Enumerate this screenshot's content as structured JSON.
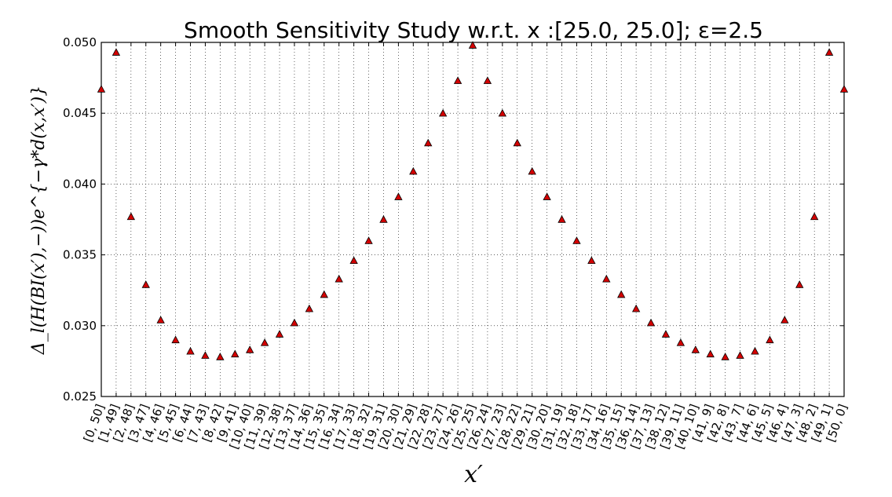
{
  "chart_data": {
    "type": "scatter",
    "title": "Smooth Sensitivity Study w.r.t. x :[25.0, 25.0]; ε=2.5",
    "xlabel": "x′",
    "ylabel": "Δ_l(H(BI(x′),−))e^{−γ*d(x,x′)}",
    "ylim": [
      0.025,
      0.05
    ],
    "y_ticks": [
      "0.025",
      "0.030",
      "0.035",
      "0.040",
      "0.045",
      "0.050"
    ],
    "grid": true,
    "marker": "triangle",
    "marker_color": "#d40000",
    "categories": [
      "[0, 50]",
      "[1, 49]",
      "[2, 48]",
      "[3, 47]",
      "[4, 46]",
      "[5, 45]",
      "[6, 44]",
      "[7, 43]",
      "[8, 42]",
      "[9, 41]",
      "[10, 40]",
      "[11, 39]",
      "[12, 38]",
      "[13, 37]",
      "[14, 36]",
      "[15, 35]",
      "[16, 34]",
      "[17, 33]",
      "[18, 32]",
      "[19, 31]",
      "[20, 30]",
      "[21, 29]",
      "[22, 28]",
      "[23, 27]",
      "[24, 26]",
      "[25, 25]",
      "[26, 24]",
      "[27, 23]",
      "[28, 22]",
      "[29, 21]",
      "[30, 20]",
      "[31, 19]",
      "[32, 18]",
      "[33, 17]",
      "[34, 16]",
      "[35, 15]",
      "[36, 14]",
      "[37, 13]",
      "[38, 12]",
      "[39, 11]",
      "[40, 10]",
      "[41, 9]",
      "[42, 8]",
      "[43, 7]",
      "[44, 6]",
      "[45, 5]",
      "[46, 4]",
      "[47, 3]",
      "[48, 2]",
      "[49, 1]",
      "[50, 0]"
    ],
    "values": [
      0.0467,
      0.0493,
      0.0377,
      0.0329,
      0.0304,
      0.029,
      0.0282,
      0.0279,
      0.0278,
      0.028,
      0.0283,
      0.0288,
      0.0294,
      0.0302,
      0.0312,
      0.0322,
      0.0333,
      0.0346,
      0.036,
      0.0375,
      0.0391,
      0.0409,
      0.0429,
      0.045,
      0.0473,
      0.0498,
      0.0473,
      0.045,
      0.0429,
      0.0409,
      0.0391,
      0.0375,
      0.036,
      0.0346,
      0.0333,
      0.0322,
      0.0312,
      0.0302,
      0.0294,
      0.0288,
      0.0283,
      0.028,
      0.0278,
      0.0279,
      0.0282,
      0.029,
      0.0304,
      0.0329,
      0.0377,
      0.0493,
      0.0467
    ]
  }
}
